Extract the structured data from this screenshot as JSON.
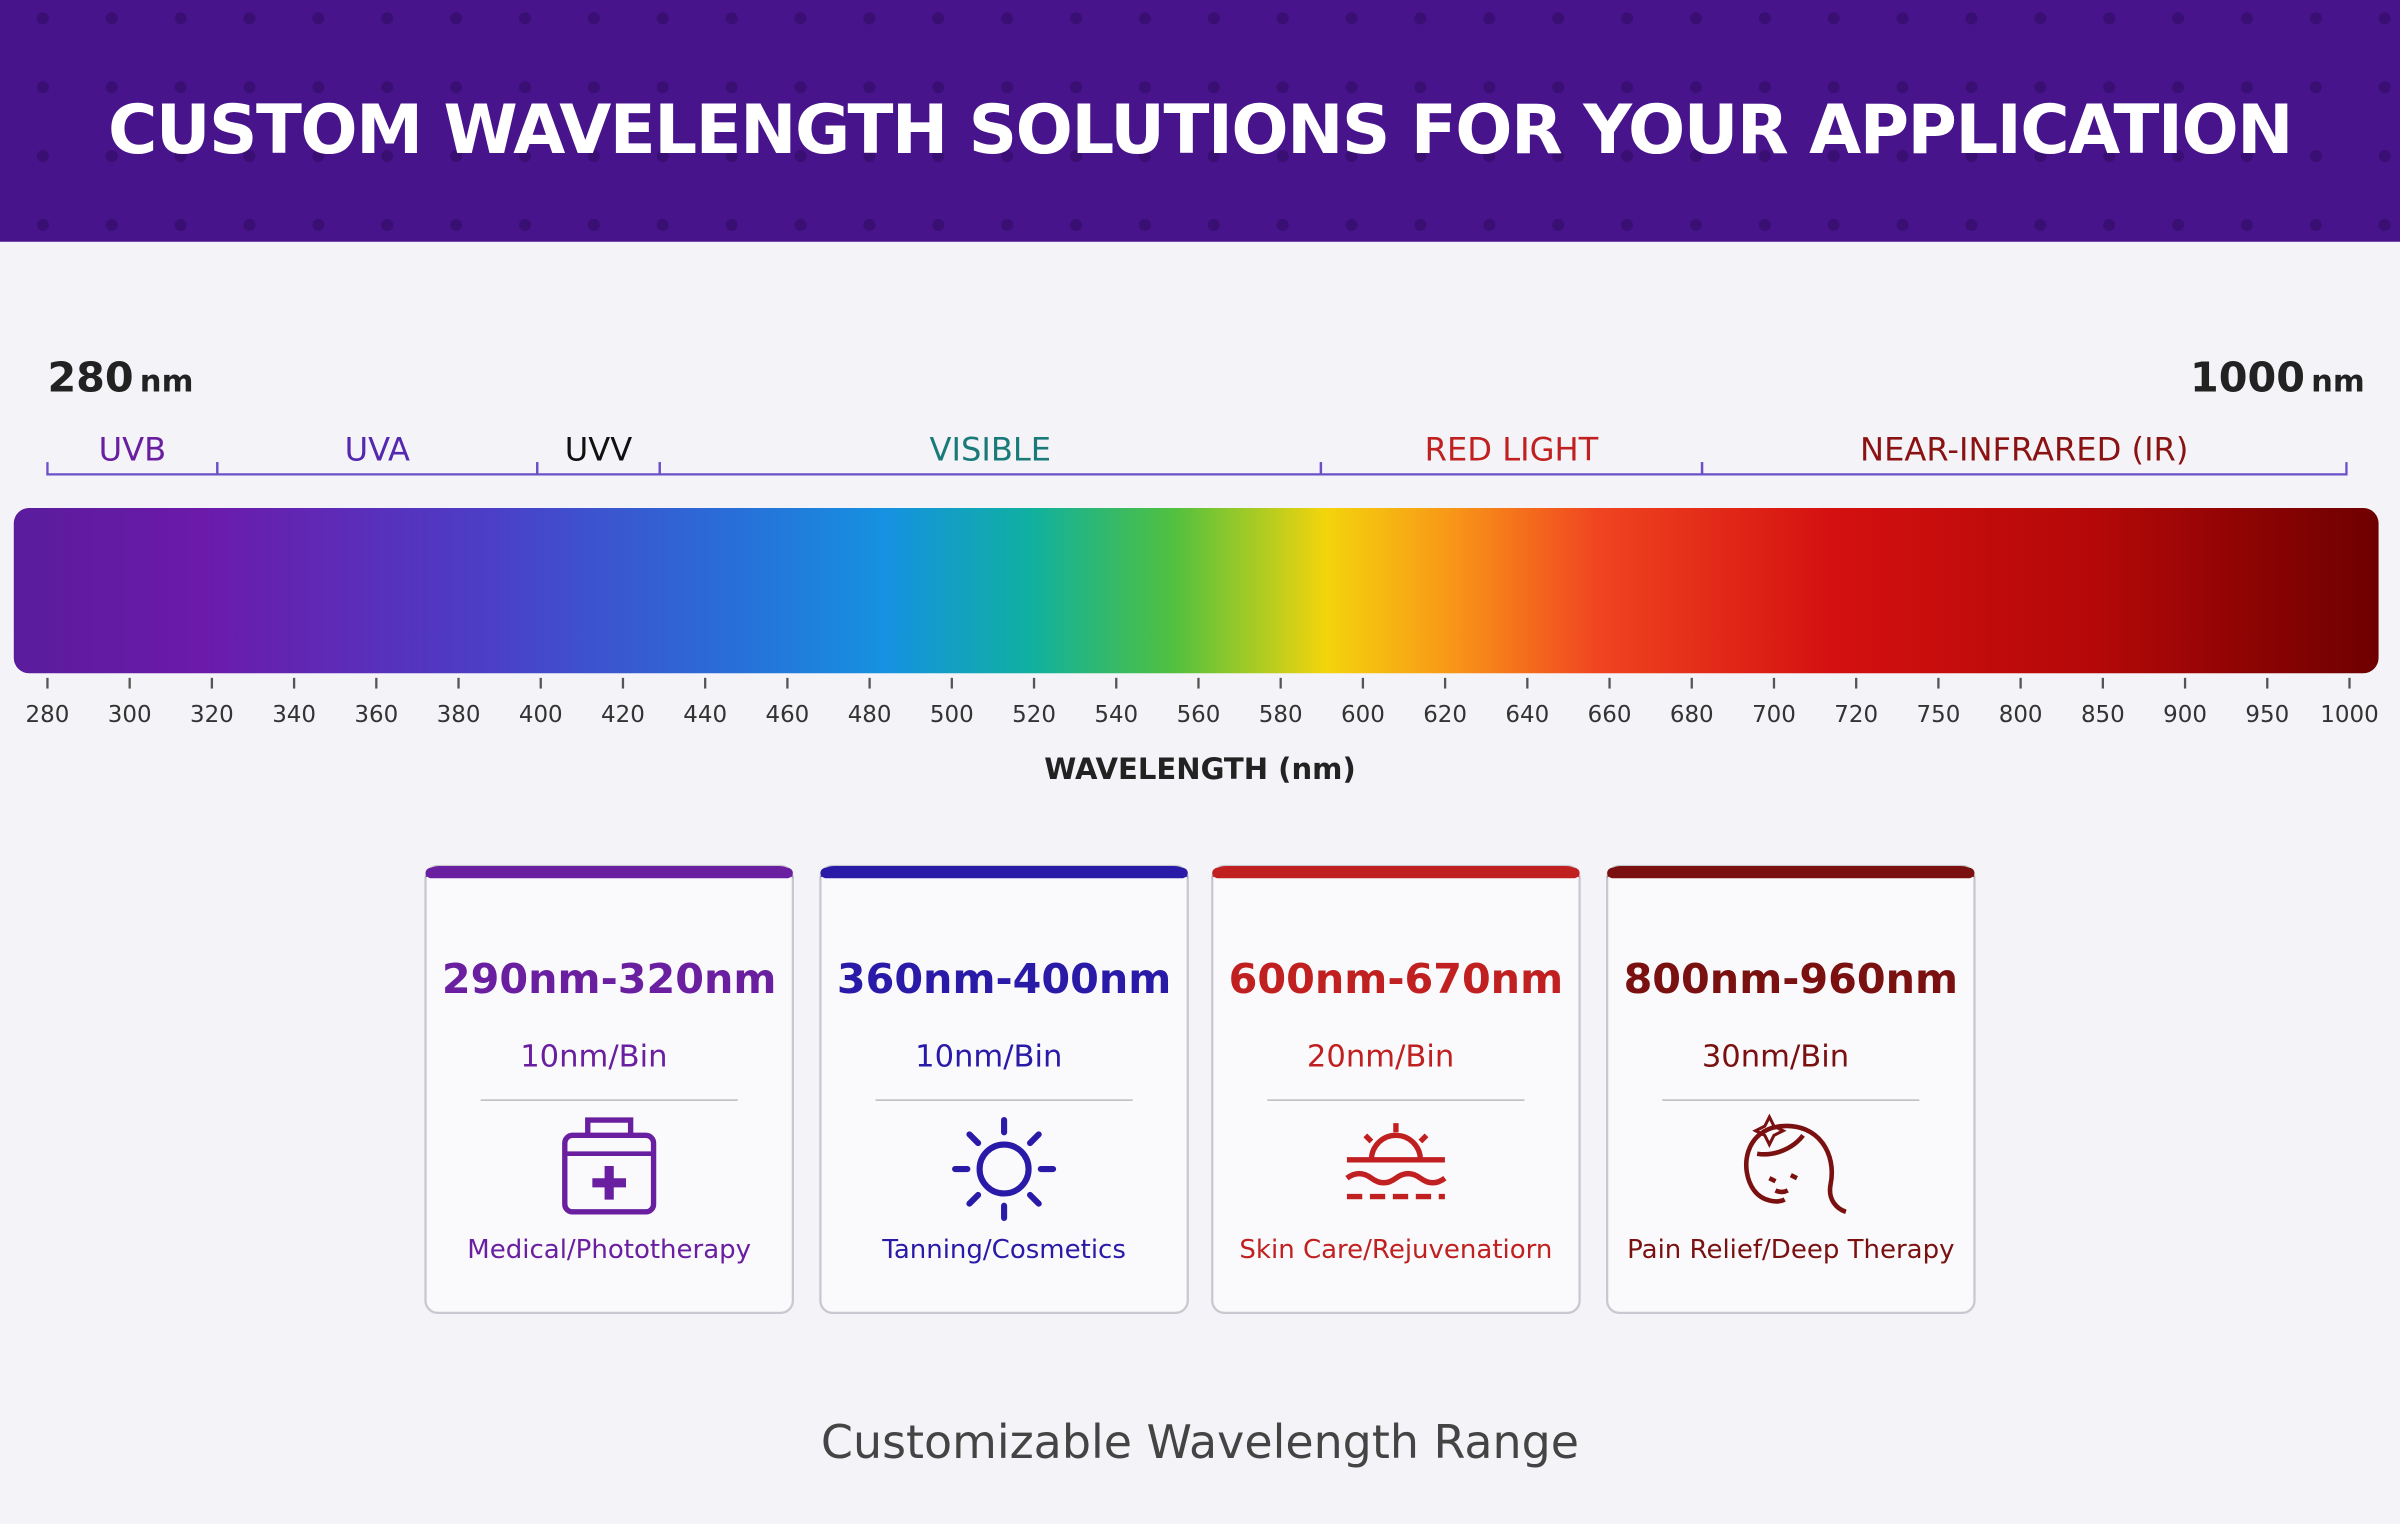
{
  "header": {
    "title": "CUSTOM WAVELENGTH SOLUTIONS FOR YOUR APPLICATION"
  },
  "spectrum": {
    "start": {
      "value": "280",
      "unit": "nm"
    },
    "end": {
      "value": "1000",
      "unit": "nm"
    },
    "bands": [
      "UVB",
      "UVA",
      "UVV",
      "VISIBLE",
      "RED LIGHT",
      "NEAR-INFRARED (IR)"
    ],
    "ticks": [
      280,
      300,
      320,
      340,
      360,
      380,
      400,
      420,
      440,
      460,
      480,
      500,
      520,
      540,
      560,
      580,
      600,
      620,
      640,
      660,
      680,
      700,
      720,
      750,
      800,
      850,
      900,
      950,
      1000
    ],
    "axis_label": "WAVELENGTH (nm)"
  },
  "cards": [
    {
      "range": "290nm-320nm",
      "bin": "10nm/Bin",
      "application": "Medical/Phototherapy"
    },
    {
      "range": "360nm-400nm",
      "bin": "10nm/Bin",
      "application": "Tanning/Cosmetics"
    },
    {
      "range": "600nm-670nm",
      "bin": "20nm/Bin",
      "application": "Skin Care/Rejuvenatiorn"
    },
    {
      "range": "800nm-960nm",
      "bin": "30nm/Bin",
      "application": "Pain Relief/Deep Therapy"
    }
  ],
  "footer": {
    "caption": "Customizable Wavelength Range"
  }
}
